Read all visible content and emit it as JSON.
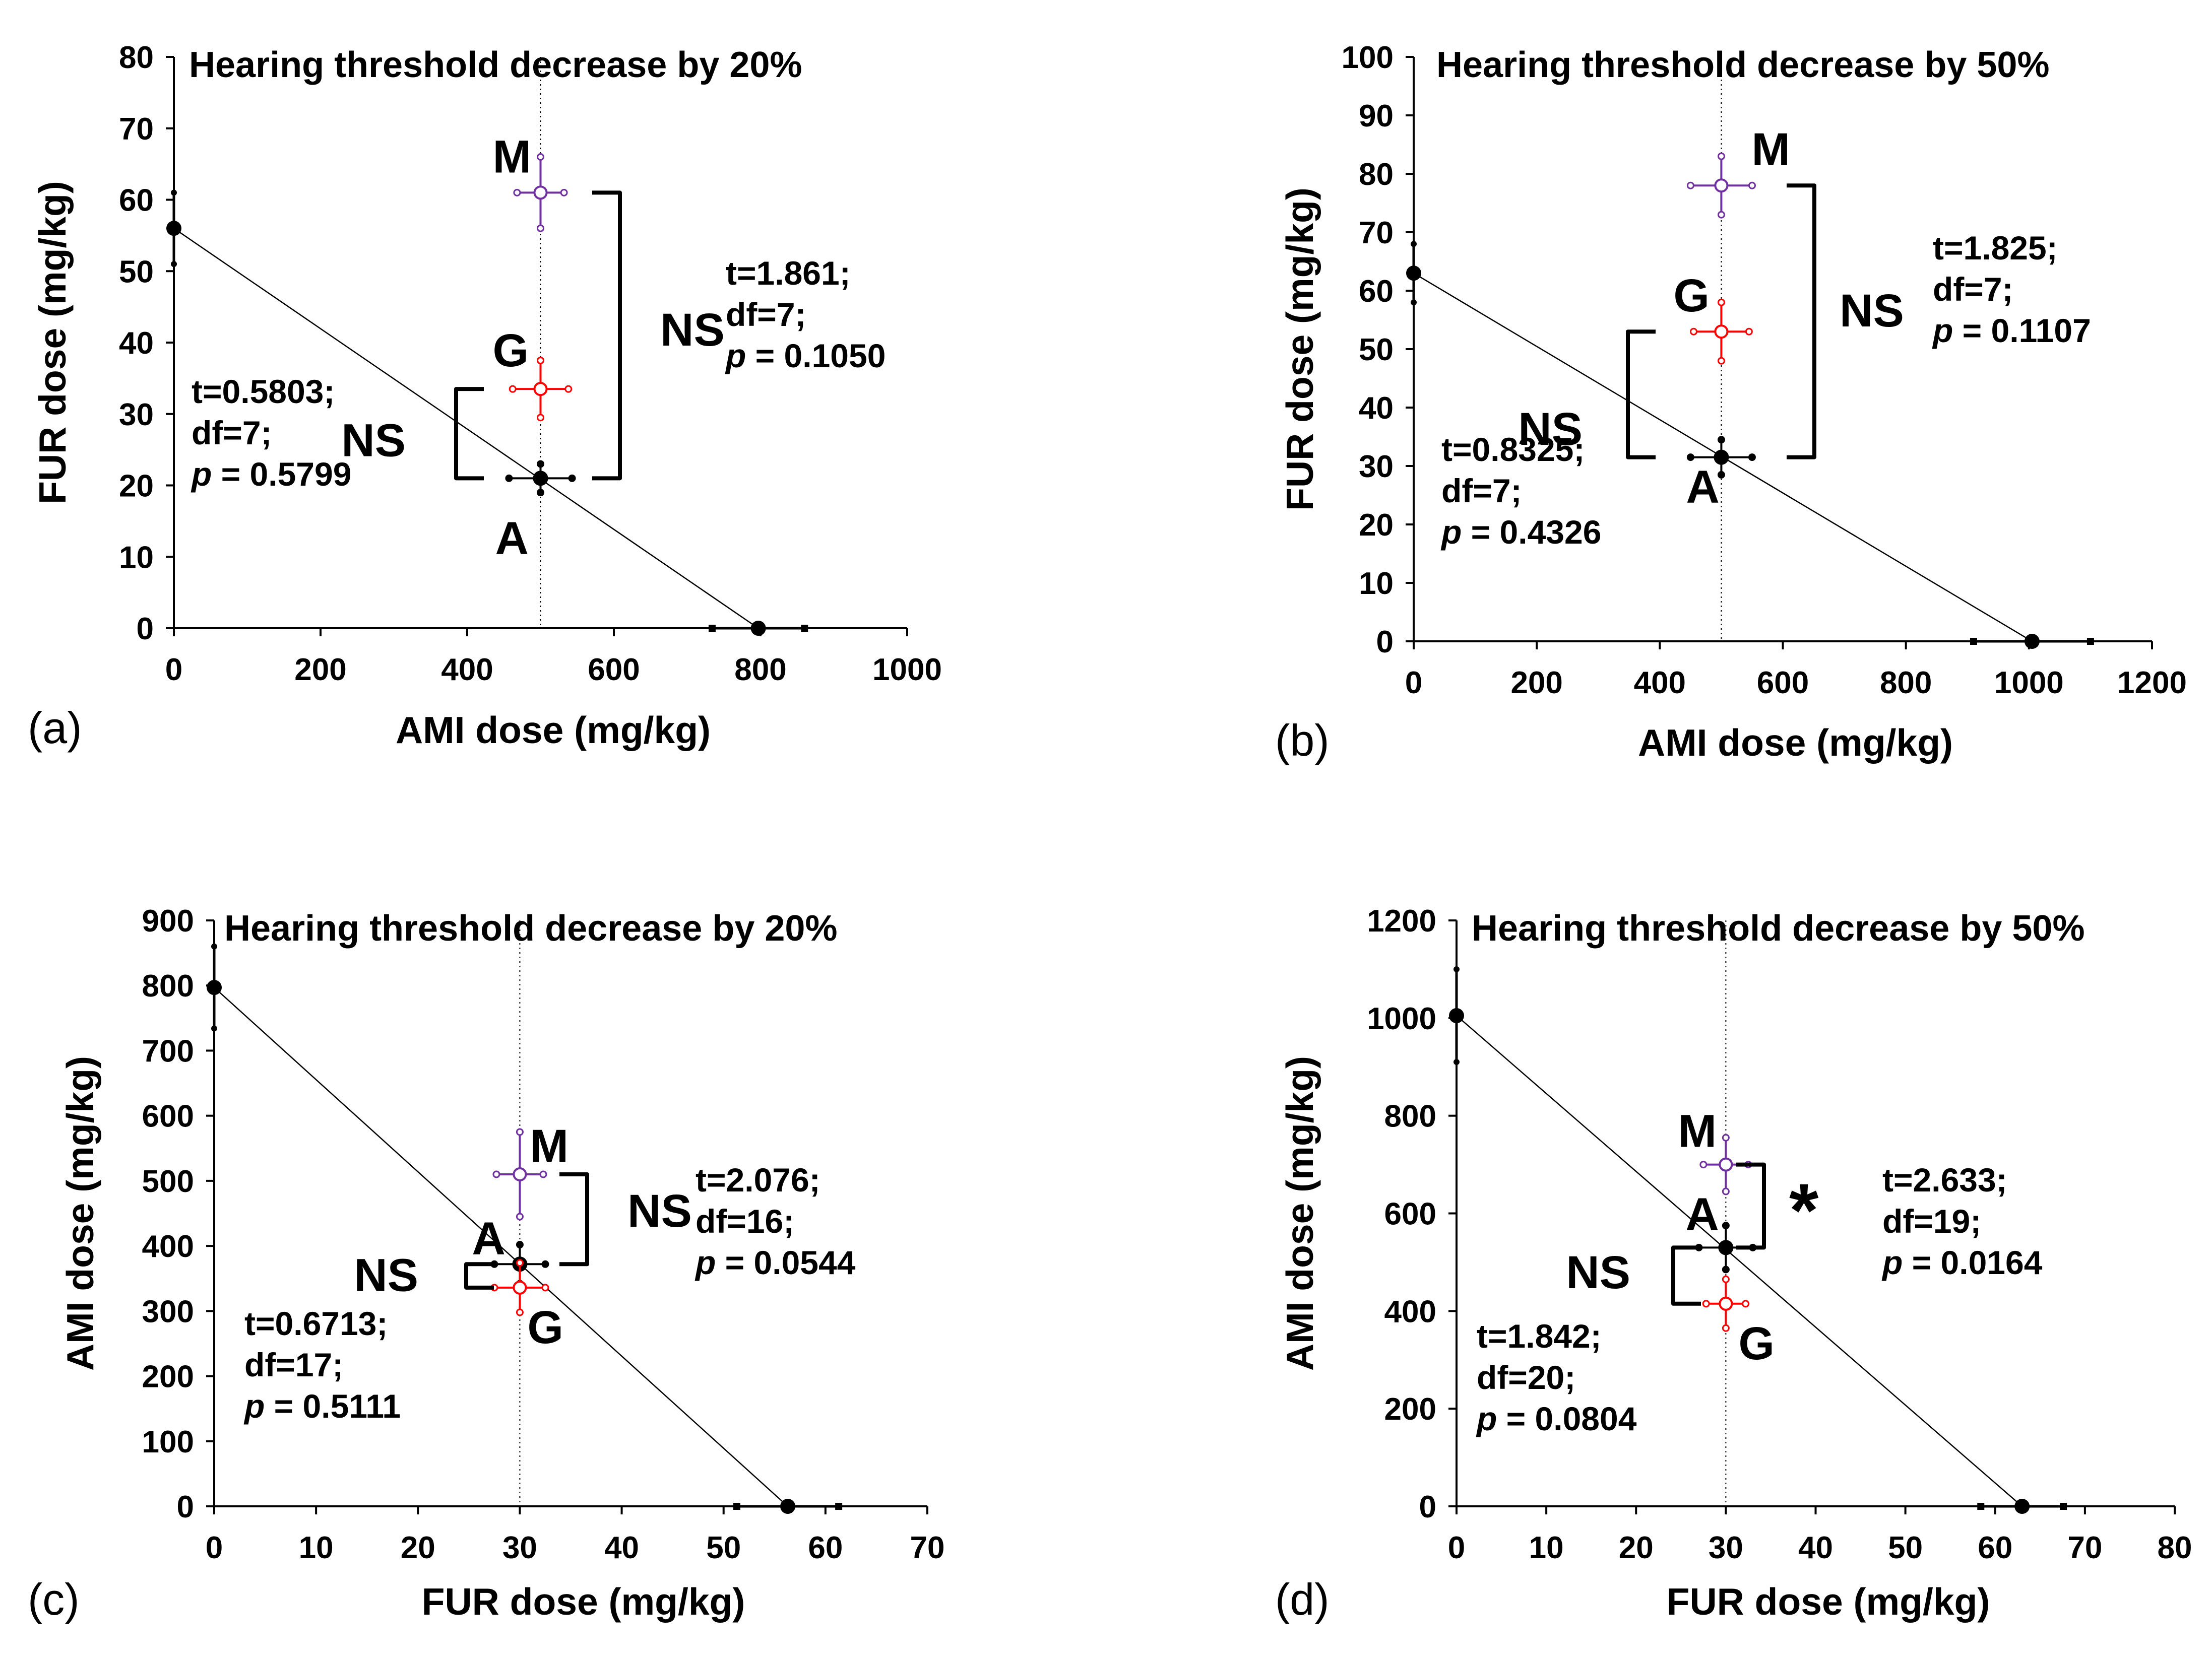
{
  "colors": {
    "A": "#000000",
    "G": "#ff0000",
    "M": "#7030a0",
    "line": "#000000"
  },
  "chart_data": [
    {
      "type": "scatter",
      "panel": "(a)",
      "title": "Hearing threshold decrease by 20%",
      "xlabel": "AMI dose (mg/kg)",
      "ylabel": "FUR dose (mg/kg)",
      "xlim": [
        0,
        1000
      ],
      "ylim": [
        0,
        80
      ],
      "xticks": [
        "0",
        "200",
        "400",
        "600",
        "800",
        "1000"
      ],
      "yticks": [
        "0",
        "10",
        "20",
        "30",
        "40",
        "50",
        "60",
        "70",
        "80"
      ],
      "reference_x": 500,
      "additivity_line": {
        "y_intercept": {
          "x": 0,
          "y": 56,
          "err": 5
        },
        "x_intercept": {
          "x": 797,
          "y": 0,
          "err": 63
        }
      },
      "points": [
        {
          "label": "A",
          "x": 500,
          "y": 21,
          "xerr": 43,
          "yerr": 2
        },
        {
          "label": "G",
          "x": 500,
          "y": 33.5,
          "xerr": 38,
          "yerr": 4
        },
        {
          "label": "M",
          "x": 500,
          "y": 61,
          "xerr": 32,
          "yerr": 5
        }
      ],
      "comparisons": [
        {
          "sig": "NS",
          "pair": "A-G",
          "stats": [
            "t=0.5803;",
            "df=7;",
            "= 0.5799"
          ]
        },
        {
          "sig": "NS",
          "pair": "A-M",
          "stats": [
            "t=1.861;",
            "df=7;",
            "= 0.1050"
          ]
        }
      ]
    },
    {
      "type": "scatter",
      "panel": "(b)",
      "title": "Hearing threshold decrease by 50%",
      "xlabel": "AMI dose (mg/kg)",
      "ylabel": "FUR dose (mg/kg)",
      "xlim": [
        0,
        1200
      ],
      "ylim": [
        0,
        100
      ],
      "xticks": [
        "0",
        "200",
        "400",
        "600",
        "800",
        "1000",
        "1200"
      ],
      "yticks": [
        "0",
        "10",
        "20",
        "30",
        "40",
        "50",
        "60",
        "70",
        "80",
        "90",
        "100"
      ],
      "reference_x": 500,
      "additivity_line": {
        "y_intercept": {
          "x": 0,
          "y": 63,
          "err": 5
        },
        "x_intercept": {
          "x": 1005,
          "y": 0,
          "err": 95
        }
      },
      "points": [
        {
          "label": "A",
          "x": 500,
          "y": 31.5,
          "xerr": 50,
          "yerr": 3
        },
        {
          "label": "G",
          "x": 500,
          "y": 53,
          "xerr": 45,
          "yerr": 5
        },
        {
          "label": "M",
          "x": 500,
          "y": 78,
          "xerr": 50,
          "yerr": 5
        }
      ],
      "comparisons": [
        {
          "sig": "NS",
          "pair": "A-G",
          "stats": [
            "t=0.8325;",
            "df=7;",
            "= 0.4326"
          ]
        },
        {
          "sig": "NS",
          "pair": "A-M",
          "stats": [
            "t=1.825;",
            "df=7;",
            "= 0.1107"
          ]
        }
      ]
    },
    {
      "type": "scatter",
      "panel": "(c)",
      "title": "Hearing threshold decrease by 20%",
      "xlabel": "FUR dose (mg/kg)",
      "ylabel": "AMI dose (mg/kg)",
      "xlim": [
        0,
        70
      ],
      "ylim": [
        0,
        900
      ],
      "xticks": [
        "0",
        "10",
        "20",
        "30",
        "40",
        "50",
        "60",
        "70"
      ],
      "yticks": [
        "0",
        "100",
        "200",
        "300",
        "400",
        "500",
        "600",
        "700",
        "800",
        "900"
      ],
      "reference_x": 30,
      "additivity_line": {
        "y_intercept": {
          "x": 0,
          "y": 797,
          "err": 63
        },
        "x_intercept": {
          "x": 56.3,
          "y": 0,
          "err": 5
        }
      },
      "points": [
        {
          "label": "A",
          "x": 30,
          "y": 372,
          "xerr": 2.5,
          "yerr": 30
        },
        {
          "label": "G",
          "x": 30,
          "y": 336,
          "xerr": 2.5,
          "yerr": 38
        },
        {
          "label": "M",
          "x": 30,
          "y": 510,
          "xerr": 2.3,
          "yerr": 65
        }
      ],
      "comparisons": [
        {
          "sig": "NS",
          "pair": "A-G",
          "stats": [
            "t=0.6713;",
            "df=17;",
            "= 0.5111"
          ]
        },
        {
          "sig": "NS",
          "pair": "A-M",
          "stats": [
            "t=2.076;",
            "df=16;",
            "= 0.0544"
          ]
        }
      ]
    },
    {
      "type": "scatter",
      "panel": "(d)",
      "title": "Hearing threshold decrease by 50%",
      "xlabel": "FUR dose (mg/kg)",
      "ylabel": "AMI dose (mg/kg)",
      "xlim": [
        0,
        80
      ],
      "ylim": [
        0,
        1200
      ],
      "xticks": [
        "0",
        "10",
        "20",
        "30",
        "40",
        "50",
        "60",
        "70",
        "80"
      ],
      "yticks": [
        "0",
        "200",
        "400",
        "600",
        "800",
        "1000",
        "1200"
      ],
      "reference_x": 30,
      "additivity_line": {
        "y_intercept": {
          "x": 0,
          "y": 1005,
          "err": 95
        },
        "x_intercept": {
          "x": 63,
          "y": 0,
          "err": 4.6
        }
      },
      "points": [
        {
          "label": "A",
          "x": 30,
          "y": 530,
          "xerr": 3,
          "yerr": 45
        },
        {
          "label": "G",
          "x": 30,
          "y": 415,
          "xerr": 2.2,
          "yerr": 50
        },
        {
          "label": "M",
          "x": 30,
          "y": 700,
          "xerr": 2.5,
          "yerr": 55
        }
      ],
      "comparisons": [
        {
          "sig": "NS",
          "pair": "A-G",
          "stats": [
            "t=1.842;",
            "df=20;",
            "= 0.0804"
          ]
        },
        {
          "sig": "*",
          "pair": "A-M",
          "stats": [
            "t=2.633;",
            "df=19;",
            "= 0.0164"
          ]
        }
      ]
    }
  ]
}
